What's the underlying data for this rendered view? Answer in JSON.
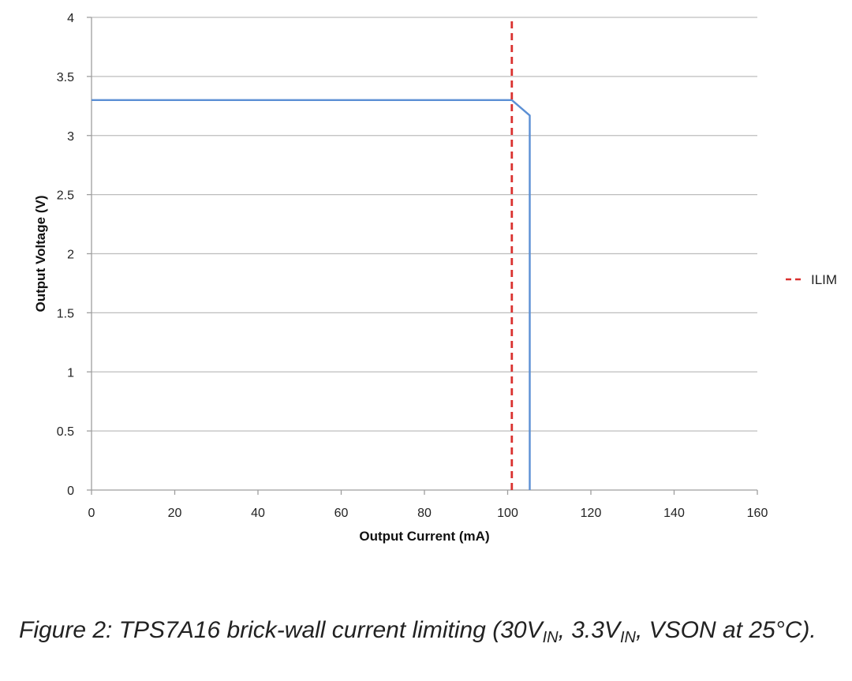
{
  "chart_data": {
    "type": "line",
    "xlabel": "Output Current (mA)",
    "ylabel": "Output Voltage (V)",
    "xlim": [
      0,
      160
    ],
    "ylim": [
      0,
      4
    ],
    "x_ticks": [
      0,
      20,
      40,
      60,
      80,
      100,
      120,
      140,
      160
    ],
    "y_ticks": [
      0,
      0.5,
      1,
      1.5,
      2,
      2.5,
      3,
      3.5,
      4
    ],
    "grid": "horizontal",
    "legend": "right",
    "series": [
      {
        "name": "",
        "color": "#5b8fd4",
        "style": "solid",
        "points": [
          [
            0,
            3.3
          ],
          [
            101,
            3.3
          ],
          [
            105.3,
            3.17
          ],
          [
            105.3,
            0
          ]
        ]
      },
      {
        "name": "ILIM",
        "color": "#d9312f",
        "style": "dashed",
        "points": [
          [
            101,
            0
          ],
          [
            101,
            4
          ]
        ]
      }
    ]
  },
  "caption": {
    "prefix": "Figure 2: TPS7A16 brick-wall current limiting (30V",
    "sub1": "IN",
    "mid": ", 3.3V",
    "sub2": "IN",
    "suffix": ", VSON at 25°C)."
  }
}
